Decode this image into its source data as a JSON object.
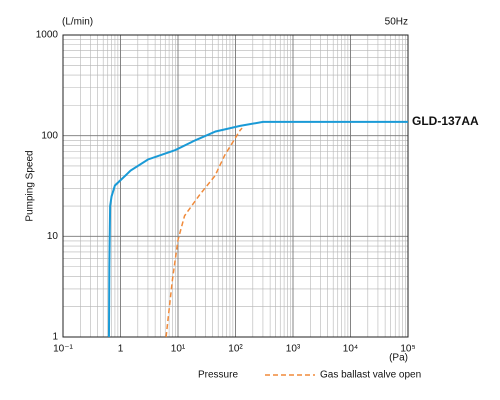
{
  "chart_data": {
    "type": "line",
    "y_unit": "(L/min)",
    "note": "50Hz",
    "ylabel": "Pumping Speed",
    "x_unit": "(Pa)",
    "xlabel": "Pressure",
    "xlog": true,
    "ylog": true,
    "grid": true,
    "xlim": [
      0.1,
      100000
    ],
    "ylim": [
      1,
      1000
    ],
    "xticks": [
      {
        "value": 0.1,
        "label": "10⁻¹"
      },
      1,
      {
        "value": 10,
        "label": "10¹"
      },
      {
        "value": 100,
        "label": "10²"
      },
      {
        "value": 1000,
        "label": "10³"
      },
      {
        "value": 10000,
        "label": "10⁴"
      },
      {
        "value": 100000,
        "label": "10⁵"
      }
    ],
    "yticks": [
      1,
      10,
      100,
      1000
    ],
    "series": [
      {
        "name": "GLD-137AA",
        "color": "#1a9ad6",
        "dash": false,
        "legend": false,
        "x": [
          0.63,
          0.64,
          0.66,
          0.7,
          0.8,
          1.5,
          3,
          9,
          20,
          45,
          120,
          300,
          400,
          100000
        ],
        "values": [
          1,
          5,
          20,
          25,
          32,
          45,
          58,
          72,
          90,
          110,
          125,
          137,
          137,
          137
        ]
      },
      {
        "name": "Gas ballast valve open",
        "color": "#f08a3a",
        "dash": true,
        "legend": true,
        "x": [
          6.2,
          8,
          10,
          13,
          24,
          44,
          65,
          120,
          130
        ],
        "values": [
          1,
          3.7,
          9.2,
          16,
          26,
          40,
          64,
          113,
          119
        ]
      }
    ]
  }
}
